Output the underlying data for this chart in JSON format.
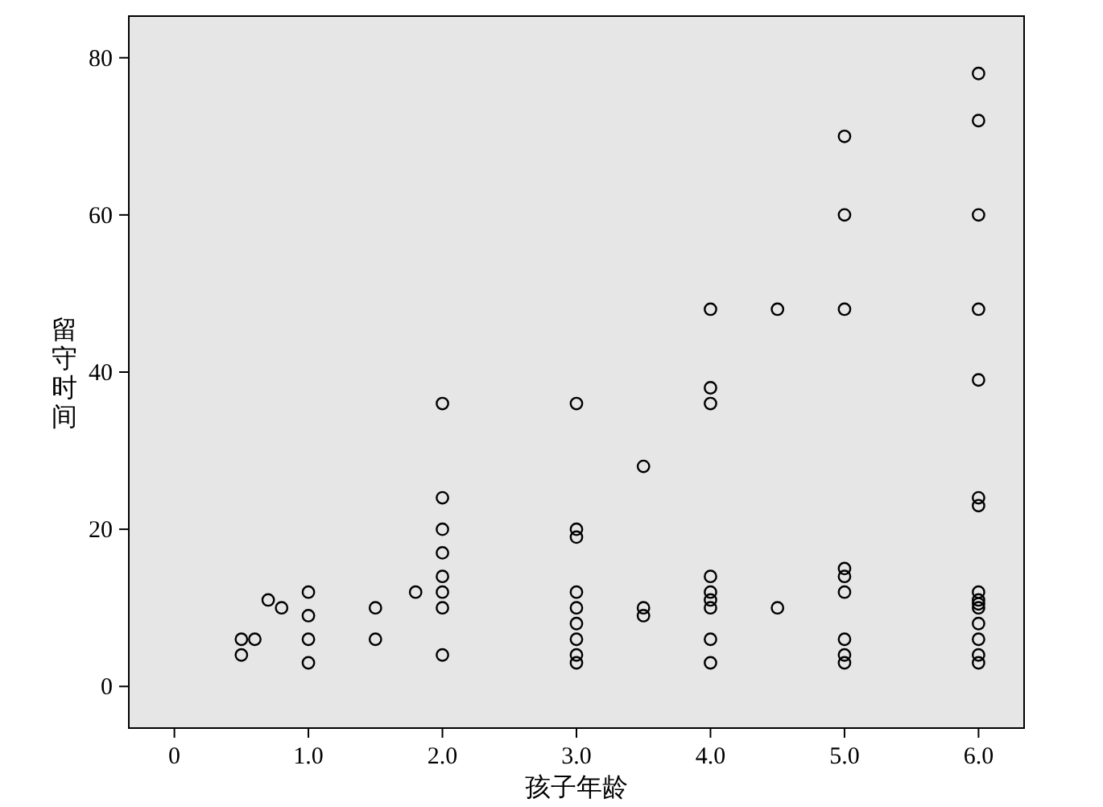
{
  "chart_data": {
    "type": "scatter",
    "xlabel": "孩子年龄",
    "ylabel": "留守时间",
    "marker": "circle",
    "xlim": [
      -0.34,
      6.34
    ],
    "ylim": [
      -5.3,
      85.3
    ],
    "xticks": [
      0,
      {
        "value": 1,
        "label": "1.0"
      },
      {
        "value": 2,
        "label": "2.0"
      },
      {
        "value": 3,
        "label": "3.0"
      },
      {
        "value": 4,
        "label": "4.0"
      },
      {
        "value": 5,
        "label": "5.0"
      },
      {
        "value": 6,
        "label": "6.0"
      }
    ],
    "yticks": [
      0,
      20,
      40,
      60,
      80
    ],
    "series": [
      {
        "color": "#000000",
        "x": [
          0.5,
          0.5,
          0.6,
          0.7,
          0.8,
          1,
          1,
          1,
          1,
          1.5,
          1.5,
          1.8,
          2,
          2,
          2,
          2,
          2,
          2,
          2,
          2,
          3,
          3,
          3,
          3,
          3,
          3,
          3,
          3,
          3,
          3.5,
          3.5,
          3.5,
          4,
          4,
          4,
          4,
          4,
          4,
          4,
          4,
          4,
          4.5,
          4.5,
          5,
          5,
          5,
          5,
          5,
          5,
          5,
          5,
          5,
          6,
          6,
          6,
          6,
          6,
          6,
          6,
          6,
          6,
          6,
          6,
          6,
          6,
          6,
          6
        ],
        "values": [
          6,
          4,
          6,
          11,
          10,
          12,
          9,
          6,
          3,
          10,
          6,
          12,
          36,
          24,
          20,
          17,
          14,
          12,
          10,
          4,
          36,
          20,
          19,
          12,
          10,
          8,
          6,
          4,
          3,
          28,
          10,
          9,
          48,
          38,
          36,
          14,
          12,
          11,
          10,
          6,
          3,
          48,
          10,
          70,
          60,
          48,
          15,
          14,
          12,
          6,
          4,
          3,
          78,
          72,
          60,
          48,
          39,
          24,
          23,
          12,
          11,
          10.5,
          10,
          8,
          6,
          4,
          3
        ]
      }
    ]
  }
}
